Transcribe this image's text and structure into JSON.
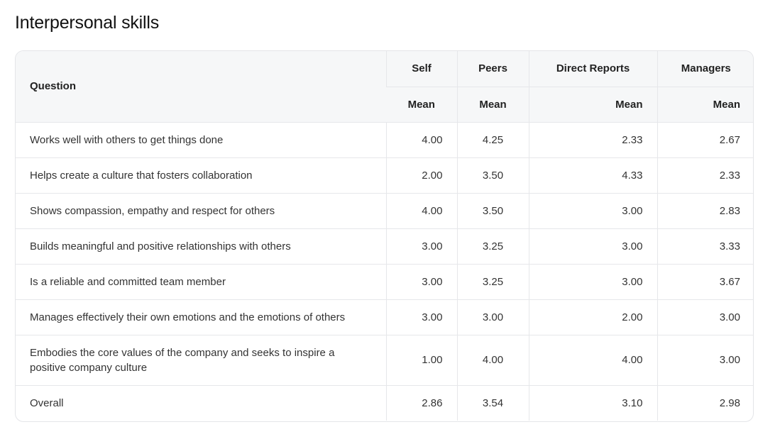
{
  "section_title": "Interpersonal skills",
  "table": {
    "question_header": "Question",
    "groups": [
      "Self",
      "Peers",
      "Direct Reports",
      "Managers"
    ],
    "sub_header": "Mean",
    "rows": [
      {
        "question": "Works well with others to get things done",
        "self": "4.00",
        "peers": "4.25",
        "direct_reports": "2.33",
        "managers": "2.67"
      },
      {
        "question": "Helps create a culture that fosters collaboration",
        "self": "2.00",
        "peers": "3.50",
        "direct_reports": "4.33",
        "managers": "2.33"
      },
      {
        "question": "Shows compassion, empathy and respect for others",
        "self": "4.00",
        "peers": "3.50",
        "direct_reports": "3.00",
        "managers": "2.83"
      },
      {
        "question": "Builds meaningful and positive relationships with others",
        "self": "3.00",
        "peers": "3.25",
        "direct_reports": "3.00",
        "managers": "3.33"
      },
      {
        "question": "Is a reliable and committed team member",
        "self": "3.00",
        "peers": "3.25",
        "direct_reports": "3.00",
        "managers": "3.67"
      },
      {
        "question": "Manages effectively their own emotions and the emotions of others",
        "self": "3.00",
        "peers": "3.00",
        "direct_reports": "2.00",
        "managers": "3.00"
      },
      {
        "question": "Embodies the core values of the company and seeks to inspire a positive company culture",
        "self": "1.00",
        "peers": "4.00",
        "direct_reports": "4.00",
        "managers": "3.00"
      },
      {
        "question": "Overall",
        "self": "2.86",
        "peers": "3.54",
        "direct_reports": "3.10",
        "managers": "2.98"
      }
    ]
  }
}
